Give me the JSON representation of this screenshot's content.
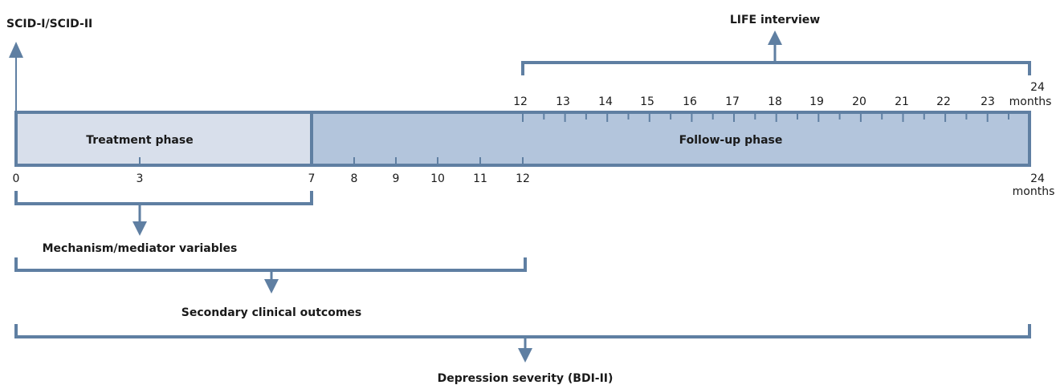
{
  "colors": {
    "line": "#5f7fa2",
    "treatment_fill": "#d8dfeb",
    "followup_fill": "#b3c5dc",
    "text": "#1a1a1a"
  },
  "labels": {
    "scid": "SCID-I/SCID-II",
    "life": "LIFE interview",
    "treatment": "Treatment phase",
    "followup": "Follow-up phase",
    "mechanism": "Mechanism/mediator variables",
    "secondary": "Secondary clinical outcomes",
    "depression": "Depression severity (BDI-II)"
  },
  "bottom_axis": {
    "ticks": [
      "0",
      "3",
      "7",
      "8",
      "9",
      "10",
      "11",
      "12"
    ],
    "end_value": "24",
    "end_unit": "months"
  },
  "top_axis": {
    "ticks": [
      "12",
      "13",
      "14",
      "15",
      "16",
      "17",
      "18",
      "19",
      "20",
      "21",
      "22",
      "23"
    ],
    "end_value": "24",
    "end_unit": "months"
  }
}
